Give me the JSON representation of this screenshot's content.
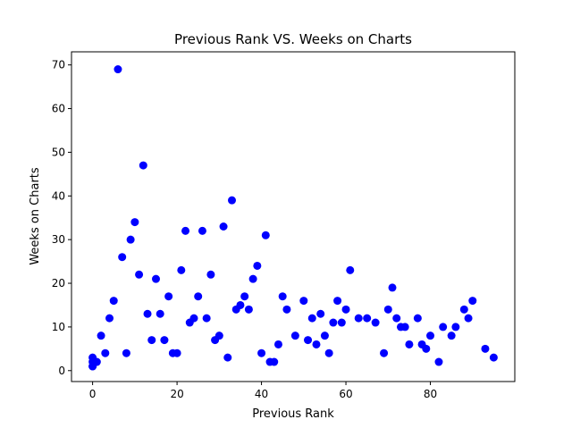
{
  "chart_data": {
    "type": "scatter",
    "title": "Previous Rank VS. Weeks on Charts",
    "xlabel": "Previous Rank",
    "ylabel": "Weeks on Charts",
    "xlim": [
      -5,
      100
    ],
    "ylim": [
      -2.5,
      73
    ],
    "xticks": [
      0,
      20,
      40,
      60,
      80
    ],
    "yticks": [
      0,
      10,
      20,
      30,
      40,
      50,
      60,
      70
    ],
    "grid": false,
    "marker_color": "#0000ff",
    "series": [
      {
        "points": [
          [
            0,
            1
          ],
          [
            0,
            1
          ],
          [
            0,
            2
          ],
          [
            0,
            3
          ],
          [
            0,
            1
          ],
          [
            1,
            2
          ],
          [
            2,
            8
          ],
          [
            3,
            4
          ],
          [
            4,
            12
          ],
          [
            5,
            16
          ],
          [
            6,
            69
          ],
          [
            7,
            26
          ],
          [
            8,
            4
          ],
          [
            9,
            30
          ],
          [
            10,
            34
          ],
          [
            11,
            22
          ],
          [
            12,
            47
          ],
          [
            13,
            13
          ],
          [
            14,
            7
          ],
          [
            15,
            21
          ],
          [
            16,
            13
          ],
          [
            17,
            7
          ],
          [
            18,
            17
          ],
          [
            19,
            4
          ],
          [
            20,
            4
          ],
          [
            21,
            23
          ],
          [
            22,
            32
          ],
          [
            23,
            11
          ],
          [
            24,
            12
          ],
          [
            25,
            17
          ],
          [
            26,
            32
          ],
          [
            27,
            12
          ],
          [
            28,
            22
          ],
          [
            29,
            7
          ],
          [
            30,
            8
          ],
          [
            31,
            33
          ],
          [
            32,
            3
          ],
          [
            33,
            39
          ],
          [
            34,
            14
          ],
          [
            35,
            15
          ],
          [
            36,
            17
          ],
          [
            37,
            14
          ],
          [
            38,
            21
          ],
          [
            39,
            24
          ],
          [
            40,
            4
          ],
          [
            41,
            31
          ],
          [
            42,
            2
          ],
          [
            43,
            2
          ],
          [
            44,
            6
          ],
          [
            45,
            17
          ],
          [
            46,
            14
          ],
          [
            48,
            8
          ],
          [
            50,
            16
          ],
          [
            51,
            7
          ],
          [
            52,
            12
          ],
          [
            53,
            6
          ],
          [
            54,
            13
          ],
          [
            55,
            8
          ],
          [
            56,
            4
          ],
          [
            57,
            11
          ],
          [
            58,
            16
          ],
          [
            59,
            11
          ],
          [
            60,
            14
          ],
          [
            61,
            23
          ],
          [
            63,
            12
          ],
          [
            65,
            12
          ],
          [
            67,
            11
          ],
          [
            69,
            4
          ],
          [
            70,
            14
          ],
          [
            71,
            19
          ],
          [
            72,
            12
          ],
          [
            73,
            10
          ],
          [
            74,
            10
          ],
          [
            75,
            6
          ],
          [
            77,
            12
          ],
          [
            78,
            6
          ],
          [
            79,
            5
          ],
          [
            80,
            8
          ],
          [
            82,
            2
          ],
          [
            83,
            10
          ],
          [
            85,
            8
          ],
          [
            86,
            10
          ],
          [
            88,
            14
          ],
          [
            89,
            12
          ],
          [
            90,
            16
          ],
          [
            93,
            5
          ],
          [
            95,
            3
          ]
        ]
      }
    ]
  }
}
